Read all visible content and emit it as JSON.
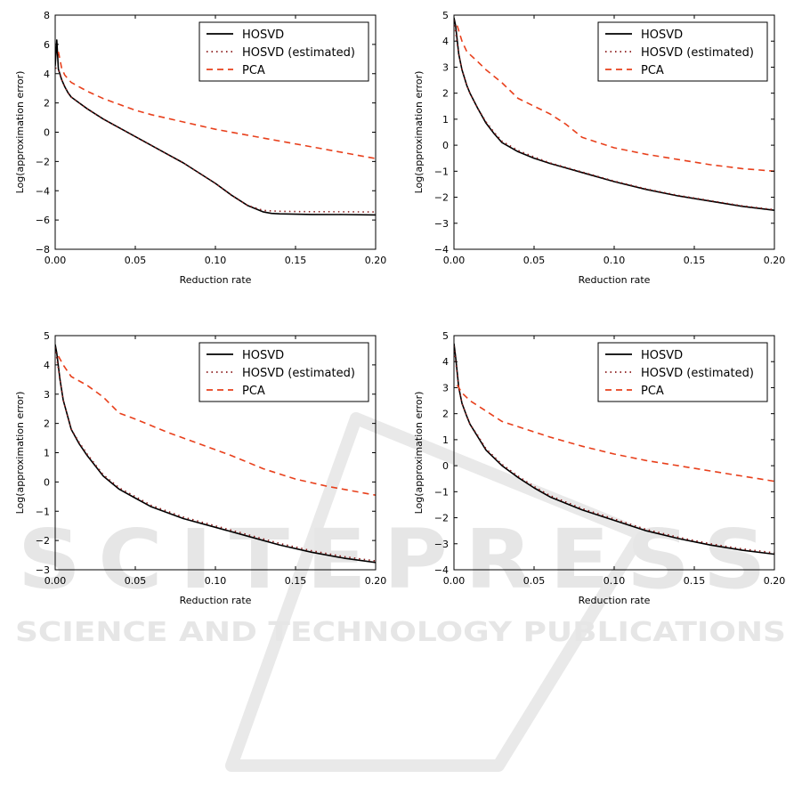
{
  "watermark": {
    "main_text": "SCITEPRESS",
    "sub_text": "SCIENCE AND TECHNOLOGY PUBLICATIONS",
    "color": "#e6e6e6"
  },
  "colors": {
    "hosvd": "#000000",
    "hosvd_estimated": "#8b1a1a",
    "pca": "#e8401c"
  },
  "chart_data": [
    {
      "type": "line",
      "xlabel": "Reduction rate",
      "ylabel": "Log(approximation error)",
      "xlim": [
        0,
        0.2
      ],
      "ylim": [
        -8,
        8
      ],
      "xticks": [
        "0.00",
        "0.05",
        "0.10",
        "0.15",
        "0.20"
      ],
      "yticks": [
        "−8",
        "−6",
        "−4",
        "−2",
        "0",
        "2",
        "4",
        "6",
        "8"
      ],
      "x_tick_values": [
        0,
        0.05,
        0.1,
        0.15,
        0.2
      ],
      "y_tick_values": [
        -8,
        -6,
        -4,
        -2,
        0,
        2,
        4,
        6,
        8
      ],
      "legend": [
        "HOSVD",
        "HOSVD (estimated)",
        "PCA"
      ],
      "series": [
        {
          "name": "HOSVD",
          "style": "solid",
          "x": [
            0,
            0.001,
            0.002,
            0.004,
            0.006,
            0.008,
            0.01,
            0.015,
            0.02,
            0.03,
            0.04,
            0.05,
            0.06,
            0.07,
            0.08,
            0.09,
            0.1,
            0.11,
            0.12,
            0.13,
            0.135,
            0.14,
            0.15,
            0.16,
            0.18,
            0.2
          ],
          "y": [
            4.5,
            6.3,
            4.3,
            3.6,
            3.1,
            2.7,
            2.4,
            2.0,
            1.6,
            0.9,
            0.3,
            -0.3,
            -0.9,
            -1.5,
            -2.1,
            -2.8,
            -3.5,
            -4.3,
            -5.0,
            -5.45,
            -5.55,
            -5.58,
            -5.6,
            -5.62,
            -5.63,
            -5.65
          ]
        },
        {
          "name": "HOSVD (estimated)",
          "style": "dotted",
          "x": [
            0,
            0.002,
            0.004,
            0.006,
            0.008,
            0.01,
            0.015,
            0.02,
            0.03,
            0.04,
            0.05,
            0.06,
            0.07,
            0.08,
            0.09,
            0.1,
            0.11,
            0.12,
            0.13,
            0.135,
            0.14,
            0.15,
            0.16,
            0.18,
            0.2
          ],
          "y": [
            4.4,
            4.3,
            3.6,
            3.1,
            2.7,
            2.4,
            2.0,
            1.6,
            0.9,
            0.3,
            -0.3,
            -0.9,
            -1.5,
            -2.1,
            -2.8,
            -3.5,
            -4.3,
            -5.0,
            -5.35,
            -5.38,
            -5.4,
            -5.42,
            -5.43,
            -5.44,
            -5.45
          ]
        },
        {
          "name": "PCA",
          "style": "dashed",
          "x": [
            0.002,
            0.004,
            0.006,
            0.01,
            0.02,
            0.03,
            0.04,
            0.05,
            0.06,
            0.08,
            0.1,
            0.12,
            0.14,
            0.16,
            0.18,
            0.2
          ],
          "y": [
            5.5,
            4.4,
            3.9,
            3.4,
            2.8,
            2.3,
            1.9,
            1.5,
            1.2,
            0.7,
            0.2,
            -0.2,
            -0.6,
            -1.0,
            -1.4,
            -1.8
          ]
        }
      ]
    },
    {
      "type": "line",
      "xlabel": "Reduction rate",
      "ylabel": "Log(approximation error)",
      "xlim": [
        0,
        0.2
      ],
      "ylim": [
        -4,
        5
      ],
      "xticks": [
        "0.00",
        "0.05",
        "0.10",
        "0.15",
        "0.20"
      ],
      "yticks": [
        "−4",
        "−3",
        "−2",
        "−1",
        "0",
        "1",
        "2",
        "3",
        "4",
        "5"
      ],
      "x_tick_values": [
        0,
        0.05,
        0.1,
        0.15,
        0.2
      ],
      "y_tick_values": [
        -4,
        -3,
        -2,
        -1,
        0,
        1,
        2,
        3,
        4,
        5
      ],
      "legend": [
        "HOSVD",
        "HOSVD (estimated)",
        "PCA"
      ],
      "series": [
        {
          "name": "HOSVD",
          "style": "solid",
          "x": [
            0,
            0.001,
            0.003,
            0.005,
            0.008,
            0.01,
            0.015,
            0.02,
            0.025,
            0.03,
            0.04,
            0.05,
            0.06,
            0.08,
            0.1,
            0.12,
            0.14,
            0.16,
            0.18,
            0.2
          ],
          "y": [
            4.9,
            4.6,
            3.5,
            2.9,
            2.3,
            2.0,
            1.4,
            0.85,
            0.45,
            0.1,
            -0.25,
            -0.5,
            -0.7,
            -1.05,
            -1.4,
            -1.7,
            -1.95,
            -2.15,
            -2.35,
            -2.5
          ]
        },
        {
          "name": "HOSVD (estimated)",
          "style": "dotted",
          "x": [
            0,
            0.003,
            0.005,
            0.008,
            0.01,
            0.015,
            0.02,
            0.025,
            0.03,
            0.04,
            0.05,
            0.06,
            0.08,
            0.1,
            0.12,
            0.14,
            0.16,
            0.18,
            0.2
          ],
          "y": [
            4.8,
            3.5,
            2.9,
            2.3,
            2.0,
            1.4,
            0.9,
            0.5,
            0.15,
            -0.2,
            -0.45,
            -0.68,
            -1.03,
            -1.38,
            -1.68,
            -1.93,
            -2.13,
            -2.33,
            -2.48
          ]
        },
        {
          "name": "PCA",
          "style": "dashed",
          "x": [
            0.002,
            0.005,
            0.008,
            0.015,
            0.02,
            0.03,
            0.04,
            0.05,
            0.06,
            0.07,
            0.08,
            0.1,
            0.12,
            0.14,
            0.16,
            0.18,
            0.2
          ],
          "y": [
            4.6,
            4.0,
            3.6,
            3.2,
            2.9,
            2.4,
            1.8,
            1.5,
            1.2,
            0.8,
            0.3,
            -0.1,
            -0.35,
            -0.55,
            -0.75,
            -0.9,
            -1.0
          ]
        }
      ]
    },
    {
      "type": "line",
      "xlabel": "Reduction rate",
      "ylabel": "Log(approximation error)",
      "xlim": [
        0,
        0.2
      ],
      "ylim": [
        -3,
        5
      ],
      "xticks": [
        "0.00",
        "0.05",
        "0.10",
        "0.15",
        "0.20"
      ],
      "yticks": [
        "−3",
        "−2",
        "−1",
        "0",
        "1",
        "2",
        "3",
        "4",
        "5"
      ],
      "x_tick_values": [
        0,
        0.05,
        0.1,
        0.15,
        0.2
      ],
      "y_tick_values": [
        -3,
        -2,
        -1,
        0,
        1,
        2,
        3,
        4,
        5
      ],
      "legend": [
        "HOSVD",
        "HOSVD (estimated)",
        "PCA"
      ],
      "series": [
        {
          "name": "HOSVD",
          "style": "solid",
          "x": [
            0,
            0.001,
            0.003,
            0.005,
            0.008,
            0.01,
            0.015,
            0.02,
            0.03,
            0.04,
            0.05,
            0.06,
            0.08,
            0.1,
            0.12,
            0.14,
            0.16,
            0.18,
            0.2
          ],
          "y": [
            4.7,
            4.4,
            3.5,
            2.8,
            2.2,
            1.8,
            1.3,
            0.9,
            0.2,
            -0.25,
            -0.55,
            -0.85,
            -1.25,
            -1.55,
            -1.85,
            -2.15,
            -2.4,
            -2.6,
            -2.75
          ]
        },
        {
          "name": "HOSVD (estimated)",
          "style": "dotted",
          "x": [
            0,
            0.003,
            0.005,
            0.008,
            0.01,
            0.015,
            0.02,
            0.03,
            0.04,
            0.05,
            0.06,
            0.08,
            0.1,
            0.12,
            0.14,
            0.16,
            0.18,
            0.2
          ],
          "y": [
            4.6,
            3.5,
            2.8,
            2.2,
            1.8,
            1.35,
            0.95,
            0.25,
            -0.2,
            -0.5,
            -0.8,
            -1.2,
            -1.5,
            -1.8,
            -2.1,
            -2.35,
            -2.55,
            -2.7
          ]
        },
        {
          "name": "PCA",
          "style": "dashed",
          "x": [
            0.002,
            0.005,
            0.01,
            0.02,
            0.03,
            0.04,
            0.05,
            0.07,
            0.09,
            0.11,
            0.13,
            0.15,
            0.17,
            0.2
          ],
          "y": [
            4.3,
            4.0,
            3.6,
            3.3,
            2.9,
            2.35,
            2.15,
            1.7,
            1.3,
            0.9,
            0.45,
            0.1,
            -0.15,
            -0.45
          ]
        }
      ]
    },
    {
      "type": "line",
      "xlabel": "Reduction rate",
      "ylabel": "Log(approximation error)",
      "xlim": [
        0,
        0.2
      ],
      "ylim": [
        -4,
        5
      ],
      "xticks": [
        "0.00",
        "0.05",
        "0.10",
        "0.15",
        "0.20"
      ],
      "yticks": [
        "−4",
        "−3",
        "−2",
        "−1",
        "0",
        "1",
        "2",
        "3",
        "4",
        "5"
      ],
      "x_tick_values": [
        0,
        0.05,
        0.1,
        0.15,
        0.2
      ],
      "y_tick_values": [
        -4,
        -3,
        -2,
        -1,
        0,
        1,
        2,
        3,
        4,
        5
      ],
      "legend": [
        "HOSVD",
        "HOSVD (estimated)",
        "PCA"
      ],
      "series": [
        {
          "name": "HOSVD",
          "style": "solid",
          "x": [
            0,
            0.001,
            0.003,
            0.005,
            0.008,
            0.01,
            0.015,
            0.02,
            0.03,
            0.04,
            0.05,
            0.06,
            0.08,
            0.1,
            0.12,
            0.14,
            0.16,
            0.18,
            0.2
          ],
          "y": [
            4.7,
            4.2,
            3.0,
            2.4,
            1.9,
            1.6,
            1.1,
            0.6,
            0.0,
            -0.45,
            -0.85,
            -1.2,
            -1.7,
            -2.1,
            -2.5,
            -2.8,
            -3.05,
            -3.25,
            -3.4
          ]
        },
        {
          "name": "HOSVD (estimated)",
          "style": "dotted",
          "x": [
            0,
            0.003,
            0.005,
            0.008,
            0.01,
            0.015,
            0.02,
            0.03,
            0.04,
            0.05,
            0.06,
            0.08,
            0.1,
            0.12,
            0.14,
            0.16,
            0.18,
            0.2
          ],
          "y": [
            4.6,
            3.0,
            2.4,
            1.9,
            1.6,
            1.15,
            0.65,
            0.05,
            -0.4,
            -0.8,
            -1.15,
            -1.65,
            -2.05,
            -2.45,
            -2.75,
            -3.0,
            -3.2,
            -3.35
          ]
        },
        {
          "name": "PCA",
          "style": "dashed",
          "x": [
            0.002,
            0.005,
            0.01,
            0.02,
            0.03,
            0.04,
            0.06,
            0.08,
            0.1,
            0.12,
            0.14,
            0.16,
            0.18,
            0.2
          ],
          "y": [
            3.1,
            2.8,
            2.5,
            2.1,
            1.7,
            1.5,
            1.1,
            0.75,
            0.45,
            0.2,
            0.0,
            -0.2,
            -0.4,
            -0.6
          ]
        }
      ]
    }
  ]
}
